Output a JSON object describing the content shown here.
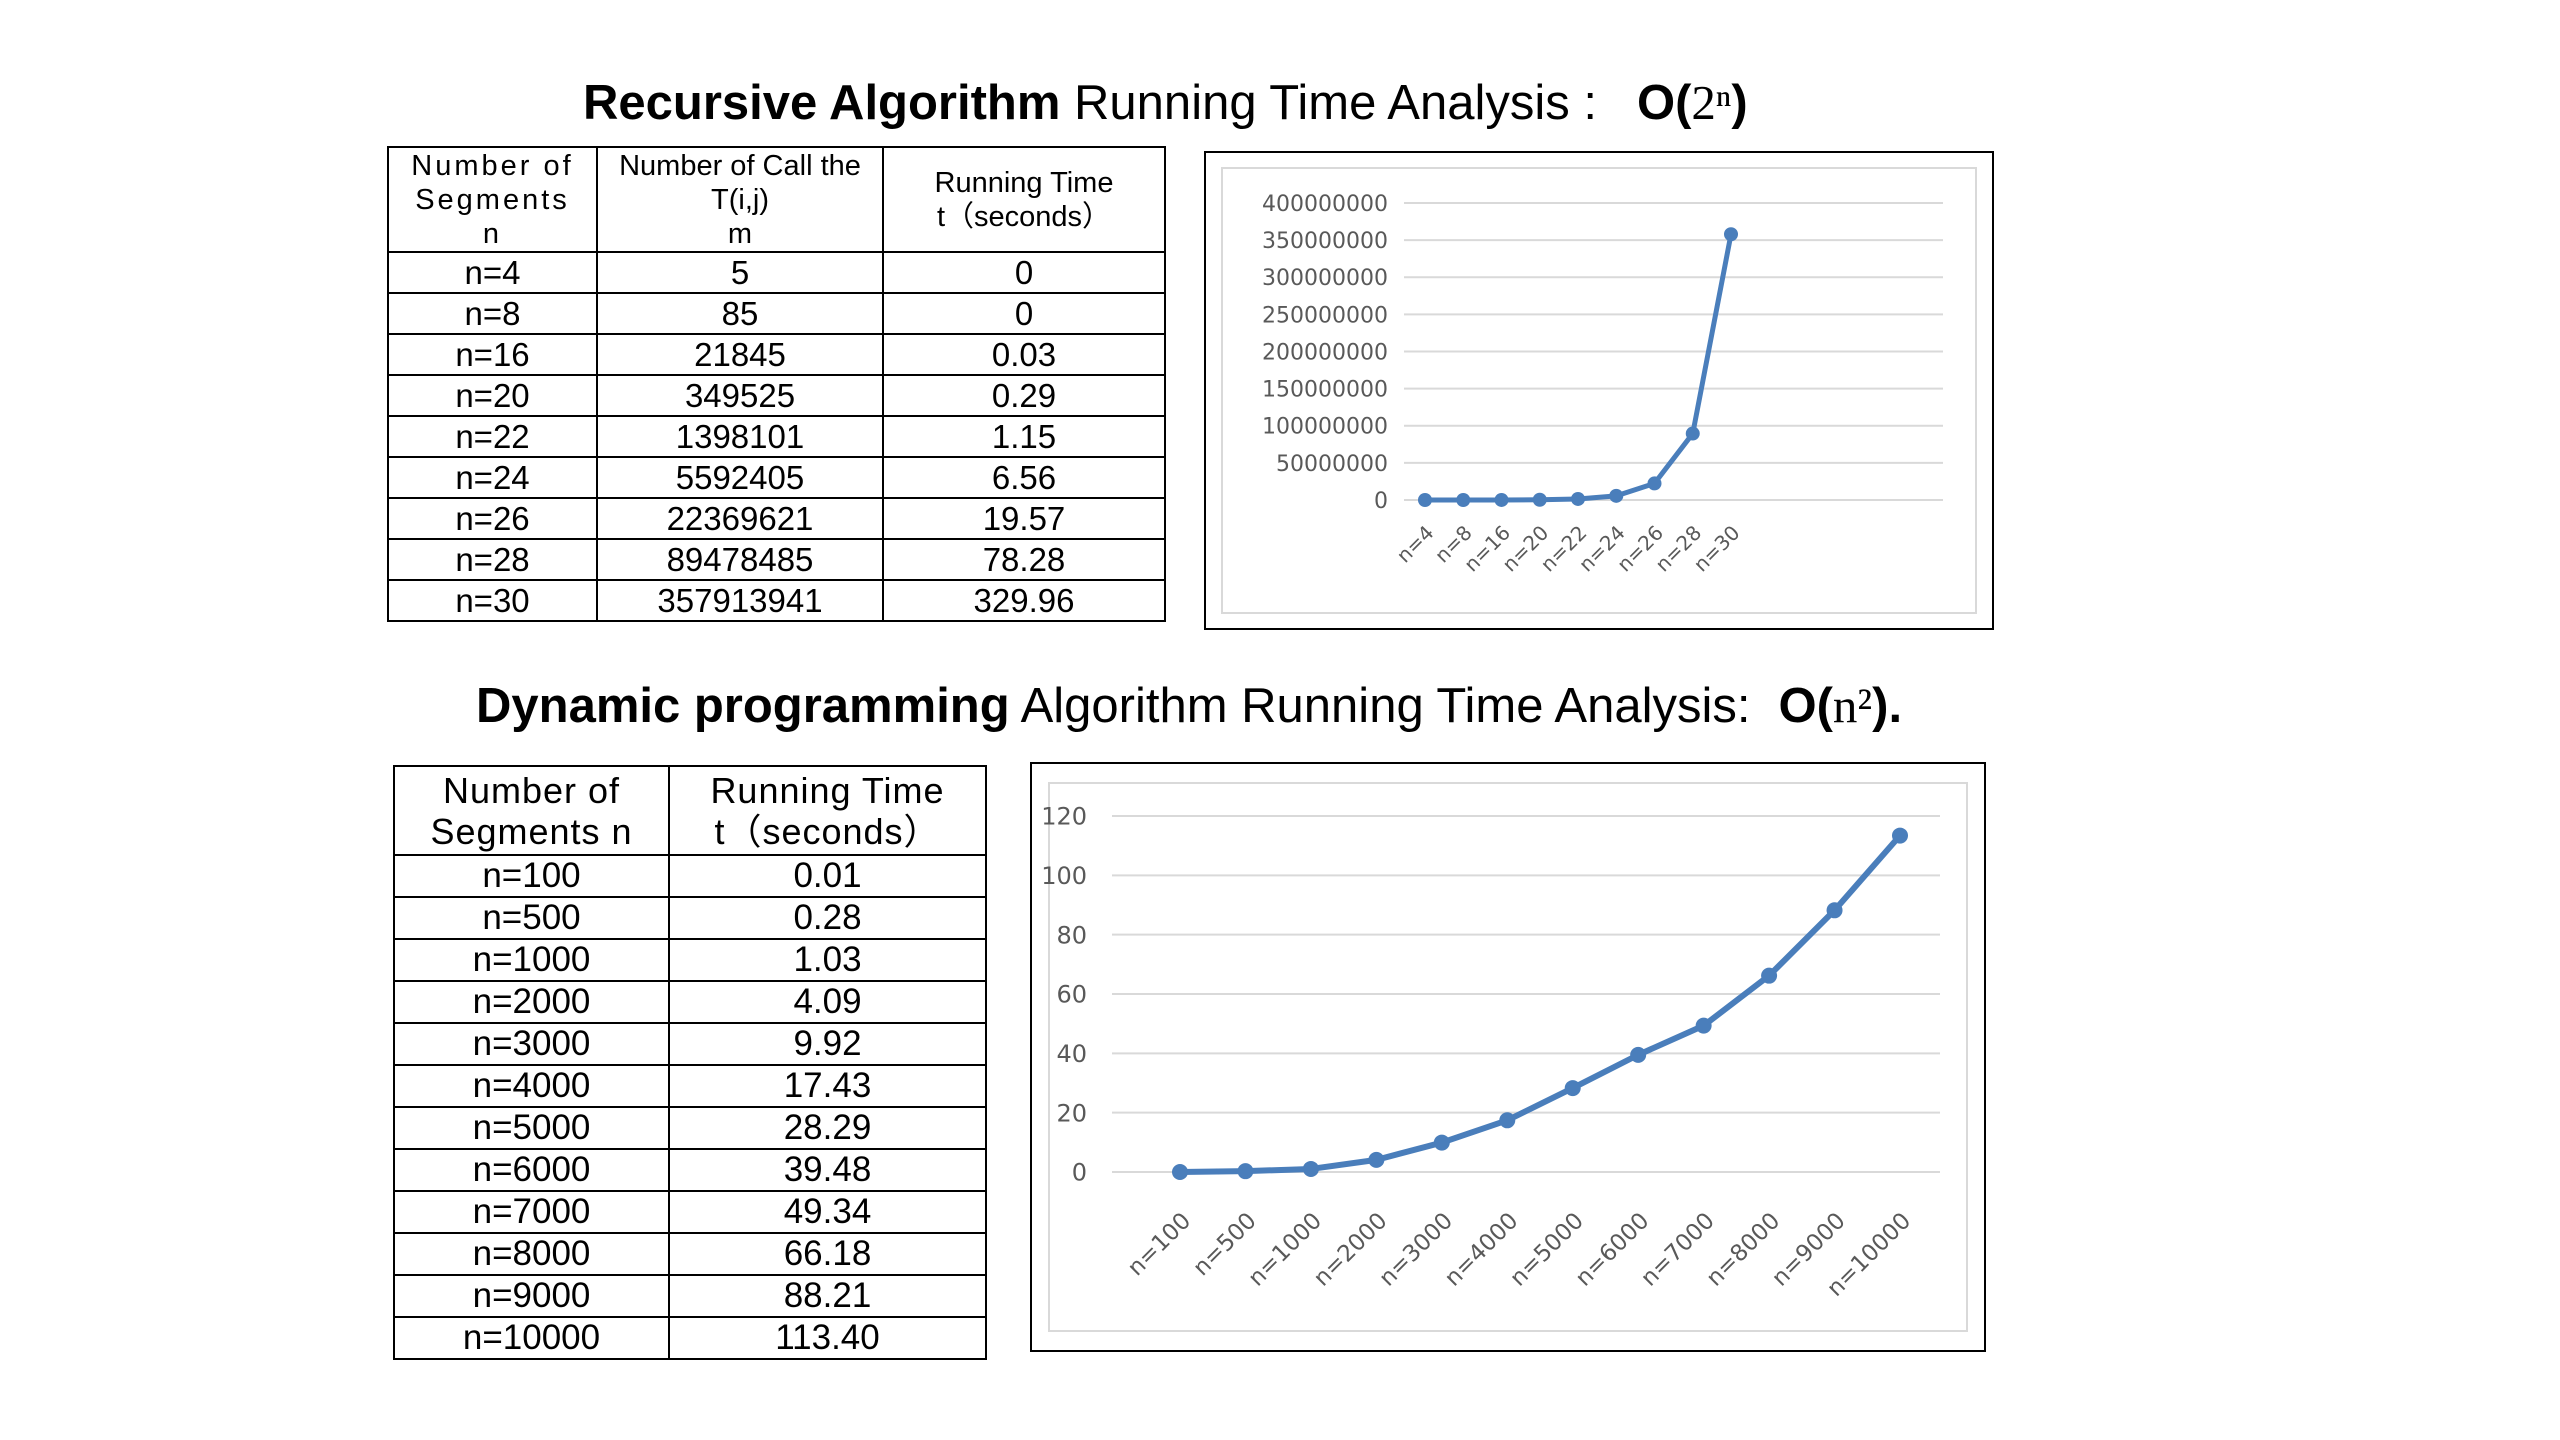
{
  "section1": {
    "title_bold": "Recursive Algorithm",
    "title_rest": "Running Time Analysis :",
    "complexity_prefix": "O(",
    "complexity_math": "2ⁿ",
    "complexity_suffix": ")"
  },
  "table1": {
    "headers": [
      "Number of\nSegments\nn",
      "Number of Call the\nT(i,j)\nm",
      "Running Time\nt（seconds）"
    ],
    "rows": [
      [
        "n=4",
        "5",
        "0"
      ],
      [
        "n=8",
        "85",
        "0"
      ],
      [
        "n=16",
        "21845",
        "0.03"
      ],
      [
        "n=20",
        "349525",
        "0.29"
      ],
      [
        "n=22",
        "1398101",
        "1.15"
      ],
      [
        "n=24",
        "5592405",
        "6.56"
      ],
      [
        "n=26",
        "22369621",
        "19.57"
      ],
      [
        "n=28",
        "89478485",
        "78.28"
      ],
      [
        "n=30",
        "357913941",
        "329.96"
      ]
    ]
  },
  "section2": {
    "title_bold": "Dynamic programming",
    "title_rest": "Algorithm Running Time Analysis:",
    "complexity_prefix": "O(",
    "complexity_math": "n²",
    "complexity_suffix": ")."
  },
  "table2": {
    "headers": [
      "Number of\nSegments n",
      "Running Time\nt（seconds）"
    ],
    "rows": [
      [
        "n=100",
        "0.01"
      ],
      [
        "n=500",
        "0.28"
      ],
      [
        "n=1000",
        "1.03"
      ],
      [
        "n=2000",
        "4.09"
      ],
      [
        "n=3000",
        "9.92"
      ],
      [
        "n=4000",
        "17.43"
      ],
      [
        "n=5000",
        "28.29"
      ],
      [
        "n=6000",
        "39.48"
      ],
      [
        "n=7000",
        "49.34"
      ],
      [
        "n=8000",
        "66.18"
      ],
      [
        "n=9000",
        "88.21"
      ],
      [
        "n=10000",
        "113.40"
      ]
    ]
  },
  "chart_data": [
    {
      "type": "line",
      "categories": [
        "n=4",
        "n=8",
        "n=16",
        "n=20",
        "n=22",
        "n=24",
        "n=26",
        "n=28",
        "n=30"
      ],
      "series": [
        {
          "values": [
            5,
            85,
            21845,
            349525,
            1398101,
            5592405,
            22369621,
            89478485,
            357913941
          ]
        }
      ],
      "yticks": [
        0,
        50000000,
        100000000,
        150000000,
        200000000,
        250000000,
        300000000,
        350000000,
        400000000
      ],
      "ylim": [
        0,
        400000000
      ],
      "grid": true,
      "color": "#4a7ebb"
    },
    {
      "type": "line",
      "categories": [
        "n=100",
        "n=500",
        "n=1000",
        "n=2000",
        "n=3000",
        "n=4000",
        "n=5000",
        "n=6000",
        "n=7000",
        "n=8000",
        "n=9000",
        "n=10000"
      ],
      "series": [
        {
          "values": [
            0.01,
            0.28,
            1.03,
            4.09,
            9.92,
            17.43,
            28.29,
            39.48,
            49.34,
            66.18,
            88.21,
            113.4
          ]
        }
      ],
      "yticks": [
        0,
        20,
        40,
        60,
        80,
        100,
        120
      ],
      "ylim": [
        0,
        120
      ],
      "grid": true,
      "color": "#4a7ebb"
    }
  ]
}
